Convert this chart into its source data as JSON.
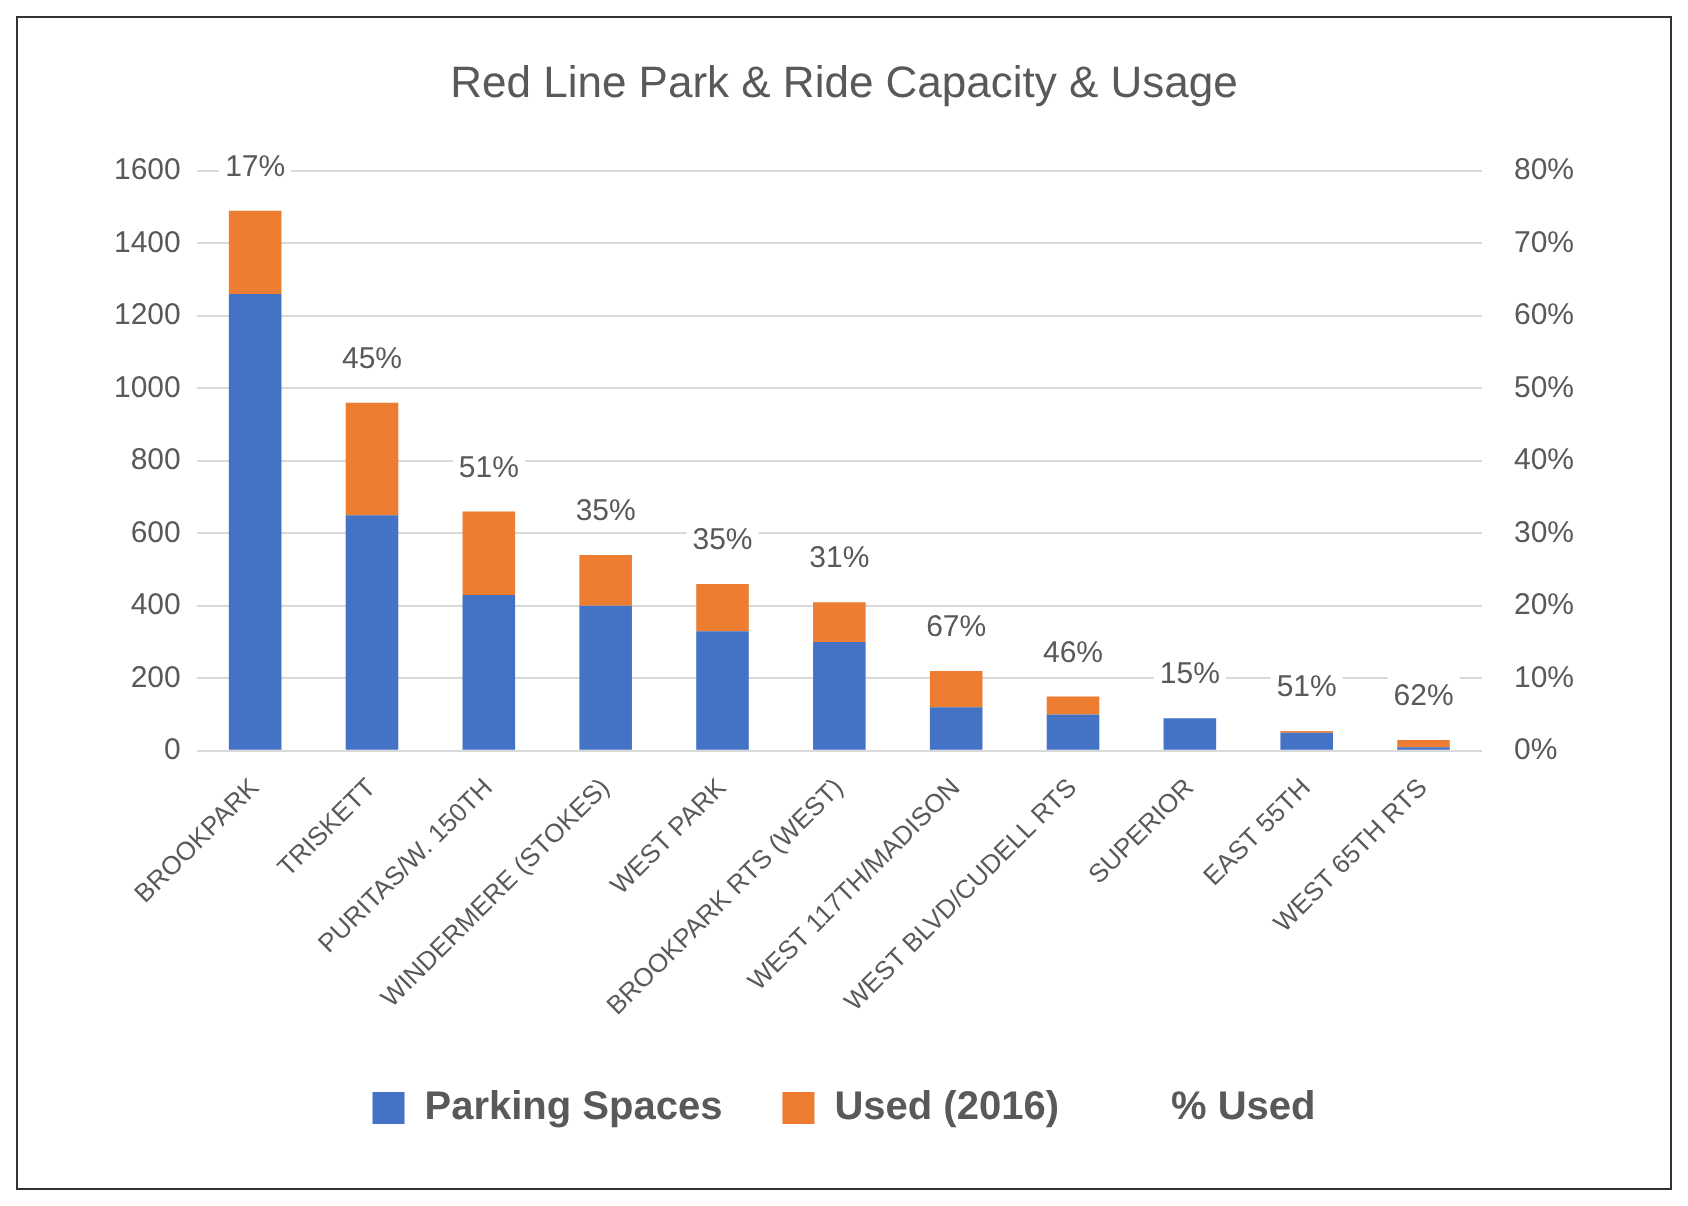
{
  "chart_data": {
    "type": "bar",
    "title": "Red Line Park & Ride Capacity & Usage",
    "categories": [
      "BROOKPARK",
      "TRISKETT",
      "PURITAS/W. 150TH",
      "WINDERMERE (STOKES)",
      "WEST PARK",
      "BROOKPARK RTS (WEST)",
      "WEST 117TH/MADISON",
      "WEST BLVD/CUDELL RTS",
      "SUPERIOR",
      "EAST 55TH",
      "WEST 65TH RTS"
    ],
    "stacked": true,
    "series": [
      {
        "name": "Parking Spaces",
        "color": "#4472c4",
        "values": [
          1260,
          650,
          430,
          400,
          330,
          300,
          120,
          100,
          90,
          50,
          10
        ]
      },
      {
        "name": "Used (2016)",
        "color": "#ed7d31",
        "values": [
          230,
          310,
          230,
          140,
          130,
          110,
          100,
          50,
          0,
          5,
          20
        ]
      },
      {
        "name": "% Used",
        "type": "line",
        "axis": "y2",
        "values": [
          null,
          null,
          null,
          null,
          null,
          null,
          null,
          null,
          null,
          null,
          null
        ]
      }
    ],
    "ylim": [
      0,
      1600
    ],
    "yticks": [
      0,
      200,
      400,
      600,
      800,
      1000,
      1200,
      1400,
      1600
    ],
    "y2lim": [
      0,
      80
    ],
    "y2ticks": [
      {
        "value": 0,
        "label": "0%"
      },
      {
        "value": 10,
        "label": "10%"
      },
      {
        "value": 20,
        "label": "20%"
      },
      {
        "value": 30,
        "label": "30%"
      },
      {
        "value": 40,
        "label": "40%"
      },
      {
        "value": 50,
        "label": "50%"
      },
      {
        "value": 60,
        "label": "60%"
      },
      {
        "value": 70,
        "label": "70%"
      },
      {
        "value": 80,
        "label": "80%"
      }
    ],
    "annotations": [
      {
        "text": "17%",
        "x": "BROOKPARK",
        "y": 1490
      },
      {
        "text": "45%",
        "x": "TRISKETT",
        "y": 960
      },
      {
        "text": "51%",
        "x": "PURITAS/W. 150TH",
        "y": 660
      },
      {
        "text": "35%",
        "x": "WINDERMERE (STOKES)",
        "y": 540
      },
      {
        "text": "35%",
        "x": "WEST PARK",
        "y": 460
      },
      {
        "text": "31%",
        "x": "BROOKPARK RTS (WEST)",
        "y": 410
      },
      {
        "text": "67%",
        "x": "WEST 117TH/MADISON",
        "y": 220
      },
      {
        "text": "46%",
        "x": "WEST BLVD/CUDELL RTS",
        "y": 150
      },
      {
        "text": "15%",
        "x": "SUPERIOR",
        "y": 90
      },
      {
        "text": "51%",
        "x": "EAST 55TH",
        "y": 55
      },
      {
        "text": "62%",
        "x": "WEST 65TH RTS",
        "y": 30
      }
    ],
    "grid": "y",
    "legend": "bottom"
  }
}
